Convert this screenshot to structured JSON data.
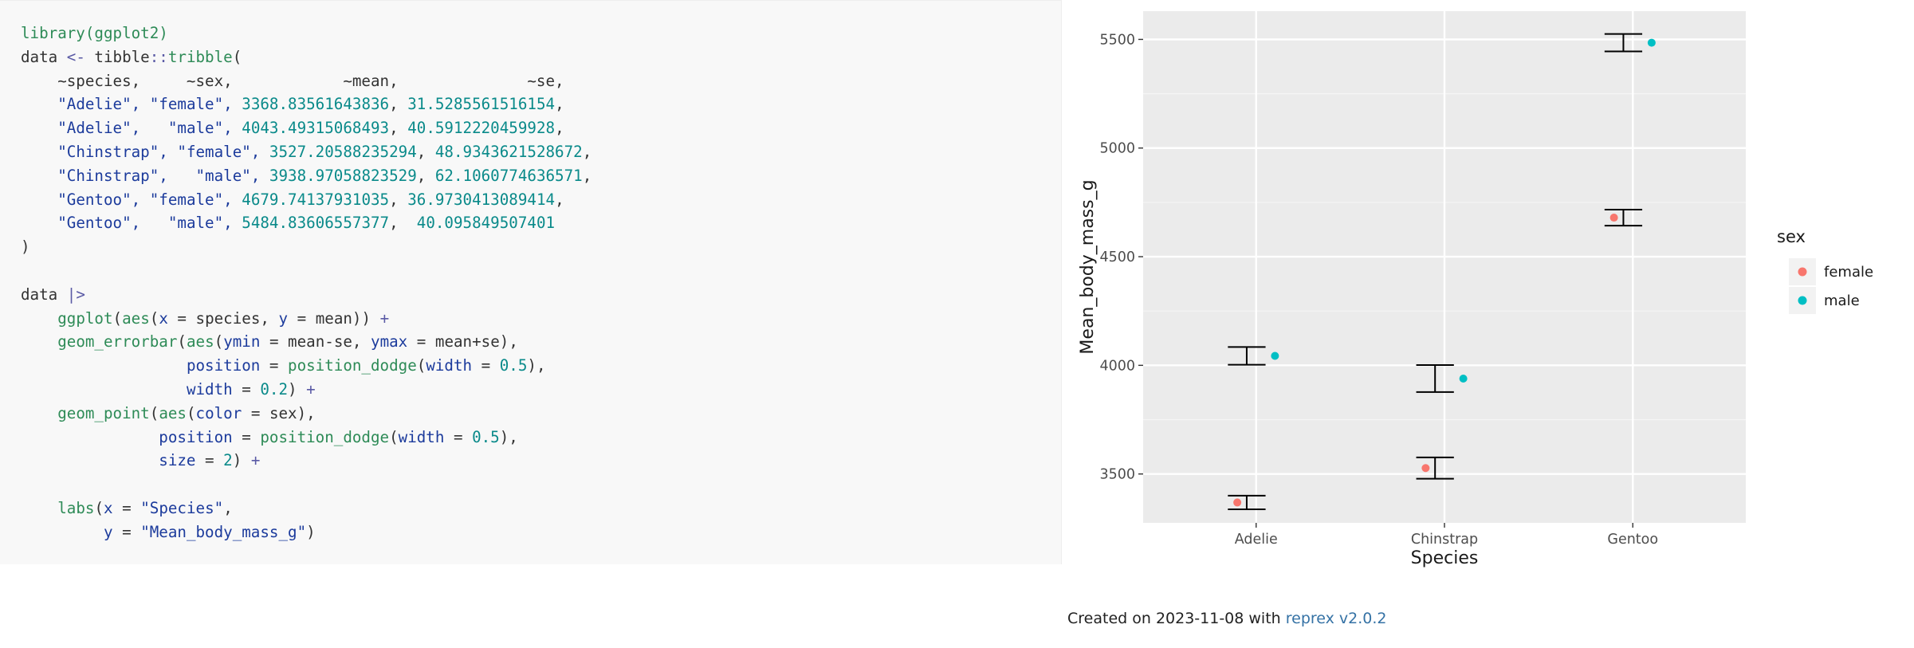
{
  "code": {
    "lines": [
      [
        [
          "library(ggplot2)",
          "fn"
        ]
      ],
      [
        [
          "data ",
          "id"
        ],
        [
          "<- ",
          "op"
        ],
        [
          "tibble",
          "id"
        ],
        [
          "::",
          "op"
        ],
        [
          "tribble",
          "fn"
        ],
        [
          "(",
          "id"
        ]
      ],
      [
        [
          "    ~species,     ~sex,            ~mean,              ~se,",
          "id"
        ]
      ],
      [
        [
          "    ",
          "id"
        ],
        [
          "\"Adelie\", \"female\", ",
          "str"
        ],
        [
          "3368.83561643836",
          "num"
        ],
        [
          ", ",
          "id"
        ],
        [
          "31.5285561516154",
          "num"
        ],
        [
          ",",
          "id"
        ]
      ],
      [
        [
          "    ",
          "id"
        ],
        [
          "\"Adelie\",   \"male\", ",
          "str"
        ],
        [
          "4043.49315068493",
          "num"
        ],
        [
          ", ",
          "id"
        ],
        [
          "40.5912220459928",
          "num"
        ],
        [
          ",",
          "id"
        ]
      ],
      [
        [
          "    ",
          "id"
        ],
        [
          "\"Chinstrap\", \"female\", ",
          "str"
        ],
        [
          "3527.20588235294",
          "num"
        ],
        [
          ", ",
          "id"
        ],
        [
          "48.9343621528672",
          "num"
        ],
        [
          ",",
          "id"
        ]
      ],
      [
        [
          "    ",
          "id"
        ],
        [
          "\"Chinstrap\",   \"male\", ",
          "str"
        ],
        [
          "3938.97058823529",
          "num"
        ],
        [
          ", ",
          "id"
        ],
        [
          "62.1060774636571",
          "num"
        ],
        [
          ",",
          "id"
        ]
      ],
      [
        [
          "    ",
          "id"
        ],
        [
          "\"Gentoo\", \"female\", ",
          "str"
        ],
        [
          "4679.74137931035",
          "num"
        ],
        [
          ", ",
          "id"
        ],
        [
          "36.9730413089414",
          "num"
        ],
        [
          ",",
          "id"
        ]
      ],
      [
        [
          "    ",
          "id"
        ],
        [
          "\"Gentoo\",   \"male\", ",
          "str"
        ],
        [
          "5484.83606557377",
          "num"
        ],
        [
          ",  ",
          "id"
        ],
        [
          "40.095849507401",
          "num"
        ]
      ],
      [
        [
          ")",
          "id"
        ]
      ],
      [
        [
          "",
          "id"
        ]
      ],
      [
        [
          "data ",
          "id"
        ],
        [
          "|>",
          "op"
        ]
      ],
      [
        [
          "    ",
          "id"
        ],
        [
          "ggplot",
          "fn"
        ],
        [
          "(",
          "id"
        ],
        [
          "aes",
          "fn"
        ],
        [
          "(",
          "id"
        ],
        [
          "x",
          "arg"
        ],
        [
          " = species, ",
          "id"
        ],
        [
          "y",
          "arg"
        ],
        [
          " = mean)) ",
          "id"
        ],
        [
          "+",
          "op"
        ]
      ],
      [
        [
          "    ",
          "id"
        ],
        [
          "geom_errorbar",
          "fn"
        ],
        [
          "(",
          "id"
        ],
        [
          "aes",
          "fn"
        ],
        [
          "(",
          "id"
        ],
        [
          "ymin",
          "arg"
        ],
        [
          " = mean-se, ",
          "id"
        ],
        [
          "ymax",
          "arg"
        ],
        [
          " = mean+se),",
          "id"
        ]
      ],
      [
        [
          "                  ",
          "id"
        ],
        [
          "position",
          "arg"
        ],
        [
          " = ",
          "id"
        ],
        [
          "position_dodge",
          "fn"
        ],
        [
          "(",
          "id"
        ],
        [
          "width",
          "arg"
        ],
        [
          " = ",
          "id"
        ],
        [
          "0.5",
          "num"
        ],
        [
          "),",
          "id"
        ]
      ],
      [
        [
          "                  ",
          "id"
        ],
        [
          "width",
          "arg"
        ],
        [
          " = ",
          "id"
        ],
        [
          "0.2",
          "num"
        ],
        [
          ") ",
          "id"
        ],
        [
          "+",
          "op"
        ]
      ],
      [
        [
          "    ",
          "id"
        ],
        [
          "geom_point",
          "fn"
        ],
        [
          "(",
          "id"
        ],
        [
          "aes",
          "fn"
        ],
        [
          "(",
          "id"
        ],
        [
          "color",
          "arg"
        ],
        [
          " = sex),",
          "id"
        ]
      ],
      [
        [
          "               ",
          "id"
        ],
        [
          "position",
          "arg"
        ],
        [
          " = ",
          "id"
        ],
        [
          "position_dodge",
          "fn"
        ],
        [
          "(",
          "id"
        ],
        [
          "width",
          "arg"
        ],
        [
          " = ",
          "id"
        ],
        [
          "0.5",
          "num"
        ],
        [
          "),",
          "id"
        ]
      ],
      [
        [
          "               ",
          "id"
        ],
        [
          "size",
          "arg"
        ],
        [
          " = ",
          "id"
        ],
        [
          "2",
          "num"
        ],
        [
          ") ",
          "id"
        ],
        [
          "+",
          "op"
        ]
      ],
      [
        [
          "",
          "id"
        ]
      ],
      [
        [
          "    ",
          "id"
        ],
        [
          "labs",
          "fn"
        ],
        [
          "(",
          "id"
        ],
        [
          "x",
          "arg"
        ],
        [
          " = ",
          "id"
        ],
        [
          "\"Species\"",
          "str"
        ],
        [
          ",",
          "id"
        ]
      ],
      [
        [
          "         ",
          "id"
        ],
        [
          "y",
          "arg"
        ],
        [
          " = ",
          "id"
        ],
        [
          "\"Mean_body_mass_g\"",
          "str"
        ],
        [
          ")",
          "id"
        ]
      ]
    ]
  },
  "chart_data": {
    "type": "scatter",
    "categories": [
      "Adelie",
      "Chinstrap",
      "Gentoo"
    ],
    "series": [
      {
        "name": "female",
        "color": "#F8766D",
        "values": [
          3368.84,
          3527.21,
          4679.74
        ],
        "se": [
          31.53,
          48.93,
          36.97
        ]
      },
      {
        "name": "male",
        "color": "#00BFC4",
        "values": [
          4043.49,
          3938.97,
          5484.84
        ],
        "se": [
          40.59,
          62.11,
          40.1
        ]
      }
    ],
    "xlabel": "Species",
    "ylabel": "Mean_body_mass_g",
    "ylim": [
      3275,
      5630
    ],
    "yticks": [
      3500,
      4000,
      4500,
      5000,
      5500
    ],
    "ytick_labels": [
      "3500",
      "4000",
      "4500",
      "5000",
      "5500"
    ],
    "legend_title": "sex",
    "legend_position": "right",
    "grid": true,
    "panel_bg": "#EBEBEB"
  },
  "footer": {
    "prefix": "Created on 2023-11-08 with ",
    "link_text": "reprex v2.0.2"
  }
}
